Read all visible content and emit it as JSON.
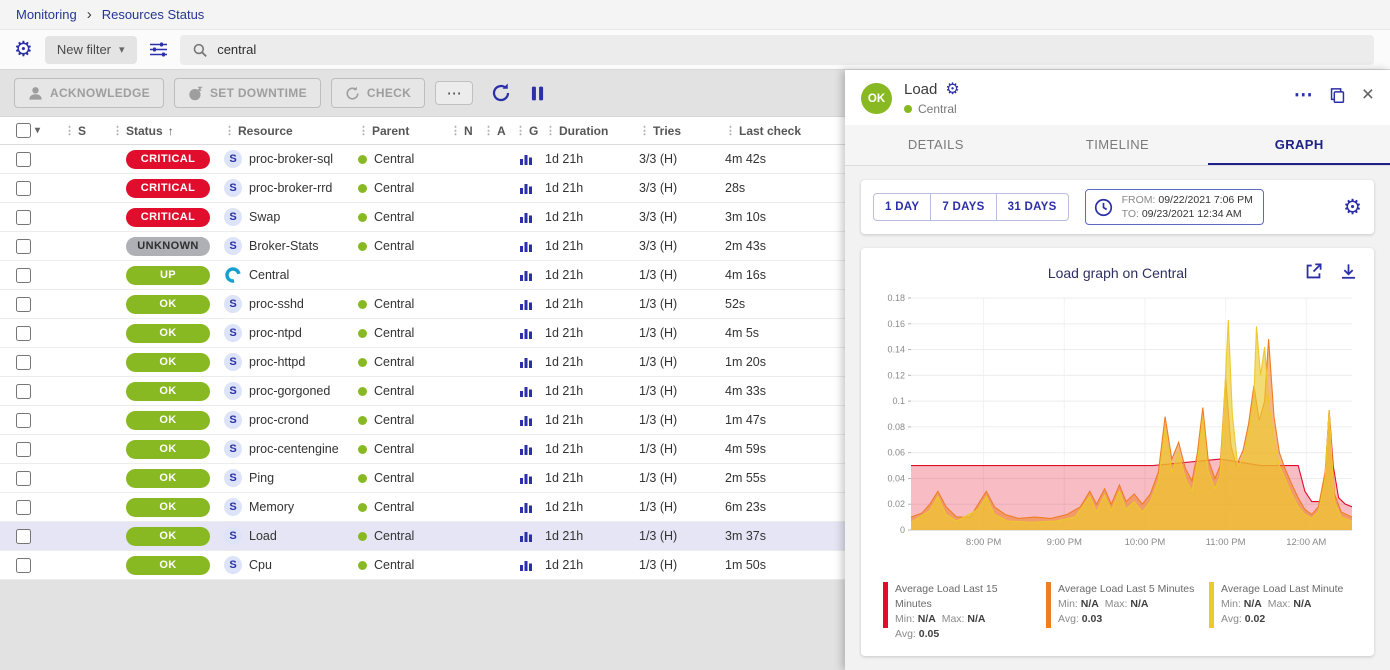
{
  "theme": {
    "primary": "#2b2fa8",
    "critical": "#e10d2c",
    "warning_orange": "#ef7d22",
    "yellow": "#ecc92c",
    "ok_green": "#88b922",
    "unknown_gray": "#aeb0b5",
    "selected_row": "#e5e5f5"
  },
  "icons": {
    "grip": "⋮",
    "caret_down": "▾",
    "sort_asc": "↑",
    "chevron": "›",
    "gear": "⚙",
    "more": "⋯",
    "close": "×"
  },
  "breadcrumb": {
    "items": [
      "Monitoring",
      "Resources Status"
    ]
  },
  "filter_bar": {
    "new_filter_label": "New filter",
    "search_value": "central"
  },
  "toolbar": {
    "acknowledge_label": "ACKNOWLEDGE",
    "set_downtime_label": "SET DOWNTIME",
    "check_label": "CHECK",
    "more_label": "⋯"
  },
  "table": {
    "headers": {
      "severity": "S",
      "status": "Status",
      "resource": "Resource",
      "parent": "Parent",
      "notes": "N",
      "action": "A",
      "graph": "G",
      "duration": "Duration",
      "tries": "Tries",
      "last_check": "Last check"
    },
    "rows": [
      {
        "status": "CRITICAL",
        "icon": "S",
        "resource": "proc-broker-sql",
        "parent": "Central",
        "duration": "1d 21h",
        "tries": "3/3 (H)",
        "last_check": "4m 42s",
        "selected": false
      },
      {
        "status": "CRITICAL",
        "icon": "S",
        "resource": "proc-broker-rrd",
        "parent": "Central",
        "duration": "1d 21h",
        "tries": "3/3 (H)",
        "last_check": "28s",
        "selected": false
      },
      {
        "status": "CRITICAL",
        "icon": "S",
        "resource": "Swap",
        "parent": "Central",
        "duration": "1d 21h",
        "tries": "3/3 (H)",
        "last_check": "3m 10s",
        "selected": false
      },
      {
        "status": "UNKNOWN",
        "icon": "S",
        "resource": "Broker-Stats",
        "parent": "Central",
        "duration": "1d 21h",
        "tries": "3/3 (H)",
        "last_check": "2m 43s",
        "selected": false
      },
      {
        "status": "UP",
        "icon": "host",
        "resource": "Central",
        "parent": "",
        "duration": "1d 21h",
        "tries": "1/3 (H)",
        "last_check": "4m 16s",
        "selected": false
      },
      {
        "status": "OK",
        "icon": "S",
        "resource": "proc-sshd",
        "parent": "Central",
        "duration": "1d 21h",
        "tries": "1/3 (H)",
        "last_check": "52s",
        "selected": false
      },
      {
        "status": "OK",
        "icon": "S",
        "resource": "proc-ntpd",
        "parent": "Central",
        "duration": "1d 21h",
        "tries": "1/3 (H)",
        "last_check": "4m 5s",
        "selected": false
      },
      {
        "status": "OK",
        "icon": "S",
        "resource": "proc-httpd",
        "parent": "Central",
        "duration": "1d 21h",
        "tries": "1/3 (H)",
        "last_check": "1m 20s",
        "selected": false
      },
      {
        "status": "OK",
        "icon": "S",
        "resource": "proc-gorgoned",
        "parent": "Central",
        "duration": "1d 21h",
        "tries": "1/3 (H)",
        "last_check": "4m 33s",
        "selected": false
      },
      {
        "status": "OK",
        "icon": "S",
        "resource": "proc-crond",
        "parent": "Central",
        "duration": "1d 21h",
        "tries": "1/3 (H)",
        "last_check": "1m 47s",
        "selected": false
      },
      {
        "status": "OK",
        "icon": "S",
        "resource": "proc-centengine",
        "parent": "Central",
        "duration": "1d 21h",
        "tries": "1/3 (H)",
        "last_check": "4m 59s",
        "selected": false
      },
      {
        "status": "OK",
        "icon": "S",
        "resource": "Ping",
        "parent": "Central",
        "duration": "1d 21h",
        "tries": "1/3 (H)",
        "last_check": "2m 55s",
        "selected": false
      },
      {
        "status": "OK",
        "icon": "S",
        "resource": "Memory",
        "parent": "Central",
        "duration": "1d 21h",
        "tries": "1/3 (H)",
        "last_check": "6m 23s",
        "selected": false
      },
      {
        "status": "OK",
        "icon": "S",
        "resource": "Load",
        "parent": "Central",
        "duration": "1d 21h",
        "tries": "1/3 (H)",
        "last_check": "3m 37s",
        "selected": true
      },
      {
        "status": "OK",
        "icon": "S",
        "resource": "Cpu",
        "parent": "Central",
        "duration": "1d 21h",
        "tries": "1/3 (H)",
        "last_check": "1m 50s",
        "selected": false
      }
    ]
  },
  "panel": {
    "status": "OK",
    "title": "Load",
    "parent": "Central",
    "tabs": [
      {
        "label": "DETAILS",
        "active": false
      },
      {
        "label": "TIMELINE",
        "active": false
      },
      {
        "label": "GRAPH",
        "active": true
      }
    ],
    "range_buttons": [
      "1 DAY",
      "7 DAYS",
      "31 DAYS"
    ],
    "from_label": "FROM:",
    "from_value": "09/22/2021 7:06 PM",
    "to_label": "TO:",
    "to_value": "09/23/2021 12:34 AM",
    "graph_title": "Load graph on Central",
    "legend_labels": {
      "min": "Min:",
      "max": "Max:",
      "avg": "Avg:"
    },
    "legend": [
      {
        "name": "Average Load Last 15 Minutes",
        "color": "#e10d2c",
        "min": "N/A",
        "max": "N/A",
        "avg": "0.05"
      },
      {
        "name": "Average Load Last 5 Minutes",
        "color": "#ef7d22",
        "min": "N/A",
        "max": "N/A",
        "avg": "0.03"
      },
      {
        "name": "Average Load Last Minute",
        "color": "#ecc92c",
        "min": "N/A",
        "max": "N/A",
        "avg": "0.02"
      }
    ]
  },
  "chart_data": {
    "type": "area",
    "title": "Load graph on Central",
    "xlabel": "",
    "ylabel": "",
    "grid": true,
    "legend_position": "bottom",
    "ylim": [
      0,
      0.18
    ],
    "y_ticks": [
      0,
      0.02,
      0.04,
      0.06,
      0.08,
      0.1,
      0.12,
      0.14,
      0.16,
      0.18
    ],
    "xlim": [
      0,
      328
    ],
    "x_unit": "minutes after 7:06 PM",
    "x_ticks": [
      {
        "label": "8:00 PM",
        "x": 54
      },
      {
        "label": "9:00 PM",
        "x": 114
      },
      {
        "label": "10:00 PM",
        "x": 174
      },
      {
        "label": "11:00 PM",
        "x": 234
      },
      {
        "label": "12:00 AM",
        "x": 294
      }
    ],
    "series": [
      {
        "name": "Average Load Last 15 Minutes",
        "color": "#e10d2c",
        "fill_opacity": 0.28,
        "points": [
          [
            0,
            0.05
          ],
          [
            120,
            0.05
          ],
          [
            180,
            0.05
          ],
          [
            230,
            0.055
          ],
          [
            260,
            0.05
          ],
          [
            288,
            0.05
          ],
          [
            293,
            0.03
          ],
          [
            298,
            0.022
          ],
          [
            304,
            0.022
          ],
          [
            308,
            0.04
          ],
          [
            311,
            0.093
          ],
          [
            314,
            0.05
          ],
          [
            318,
            0.025
          ],
          [
            323,
            0.02
          ],
          [
            328,
            0.018
          ]
        ]
      },
      {
        "name": "Average Load Last 5 Minutes",
        "color": "#ef7d22",
        "fill_opacity": 0.55,
        "points": [
          [
            0,
            0.01
          ],
          [
            8,
            0.013
          ],
          [
            14,
            0.02
          ],
          [
            20,
            0.03
          ],
          [
            26,
            0.018
          ],
          [
            34,
            0.01
          ],
          [
            44,
            0.01
          ],
          [
            50,
            0.02
          ],
          [
            56,
            0.03
          ],
          [
            62,
            0.018
          ],
          [
            70,
            0.012
          ],
          [
            80,
            0.009
          ],
          [
            92,
            0.01
          ],
          [
            104,
            0.009
          ],
          [
            116,
            0.012
          ],
          [
            126,
            0.018
          ],
          [
            133,
            0.03
          ],
          [
            138,
            0.02
          ],
          [
            144,
            0.032
          ],
          [
            149,
            0.02
          ],
          [
            155,
            0.035
          ],
          [
            160,
            0.022
          ],
          [
            166,
            0.028
          ],
          [
            172,
            0.02
          ],
          [
            178,
            0.028
          ],
          [
            184,
            0.045
          ],
          [
            189,
            0.088
          ],
          [
            194,
            0.055
          ],
          [
            199,
            0.068
          ],
          [
            204,
            0.048
          ],
          [
            209,
            0.038
          ],
          [
            213,
            0.06
          ],
          [
            217,
            0.095
          ],
          [
            221,
            0.055
          ],
          [
            226,
            0.04
          ],
          [
            230,
            0.05
          ],
          [
            234,
            0.118
          ],
          [
            238,
            0.065
          ],
          [
            242,
            0.05
          ],
          [
            247,
            0.062
          ],
          [
            251,
            0.082
          ],
          [
            255,
            0.112
          ],
          [
            259,
            0.085
          ],
          [
            263,
            0.1
          ],
          [
            266,
            0.148
          ],
          [
            270,
            0.088
          ],
          [
            274,
            0.06
          ],
          [
            278,
            0.048
          ],
          [
            283,
            0.036
          ],
          [
            288,
            0.025
          ],
          [
            293,
            0.016
          ],
          [
            298,
            0.012
          ],
          [
            303,
            0.018
          ],
          [
            308,
            0.045
          ],
          [
            311,
            0.09
          ],
          [
            315,
            0.028
          ],
          [
            320,
            0.014
          ],
          [
            328,
            0.01
          ]
        ]
      },
      {
        "name": "Average Load Last Minute",
        "color": "#ecc92c",
        "fill_opacity": 0.65,
        "points": [
          [
            0,
            0.006
          ],
          [
            14,
            0.015
          ],
          [
            20,
            0.026
          ],
          [
            26,
            0.012
          ],
          [
            34,
            0.007
          ],
          [
            50,
            0.016
          ],
          [
            56,
            0.026
          ],
          [
            62,
            0.012
          ],
          [
            72,
            0.007
          ],
          [
            90,
            0.006
          ],
          [
            108,
            0.007
          ],
          [
            122,
            0.01
          ],
          [
            133,
            0.026
          ],
          [
            138,
            0.014
          ],
          [
            144,
            0.027
          ],
          [
            149,
            0.015
          ],
          [
            155,
            0.03
          ],
          [
            160,
            0.016
          ],
          [
            166,
            0.022
          ],
          [
            172,
            0.014
          ],
          [
            178,
            0.022
          ],
          [
            184,
            0.038
          ],
          [
            189,
            0.08
          ],
          [
            194,
            0.045
          ],
          [
            199,
            0.06
          ],
          [
            204,
            0.04
          ],
          [
            209,
            0.03
          ],
          [
            213,
            0.052
          ],
          [
            217,
            0.088
          ],
          [
            221,
            0.046
          ],
          [
            226,
            0.032
          ],
          [
            230,
            0.042
          ],
          [
            233,
            0.1
          ],
          [
            236,
            0.163
          ],
          [
            239,
            0.09
          ],
          [
            243,
            0.05
          ],
          [
            247,
            0.055
          ],
          [
            251,
            0.075
          ],
          [
            255,
            0.105
          ],
          [
            257,
            0.158
          ],
          [
            260,
            0.12
          ],
          [
            263,
            0.142
          ],
          [
            266,
            0.1
          ],
          [
            270,
            0.07
          ],
          [
            274,
            0.05
          ],
          [
            278,
            0.04
          ],
          [
            283,
            0.028
          ],
          [
            288,
            0.018
          ],
          [
            293,
            0.012
          ],
          [
            298,
            0.009
          ],
          [
            303,
            0.014
          ],
          [
            308,
            0.04
          ],
          [
            311,
            0.093
          ],
          [
            315,
            0.022
          ],
          [
            320,
            0.01
          ],
          [
            328,
            0.007
          ]
        ]
      }
    ]
  }
}
